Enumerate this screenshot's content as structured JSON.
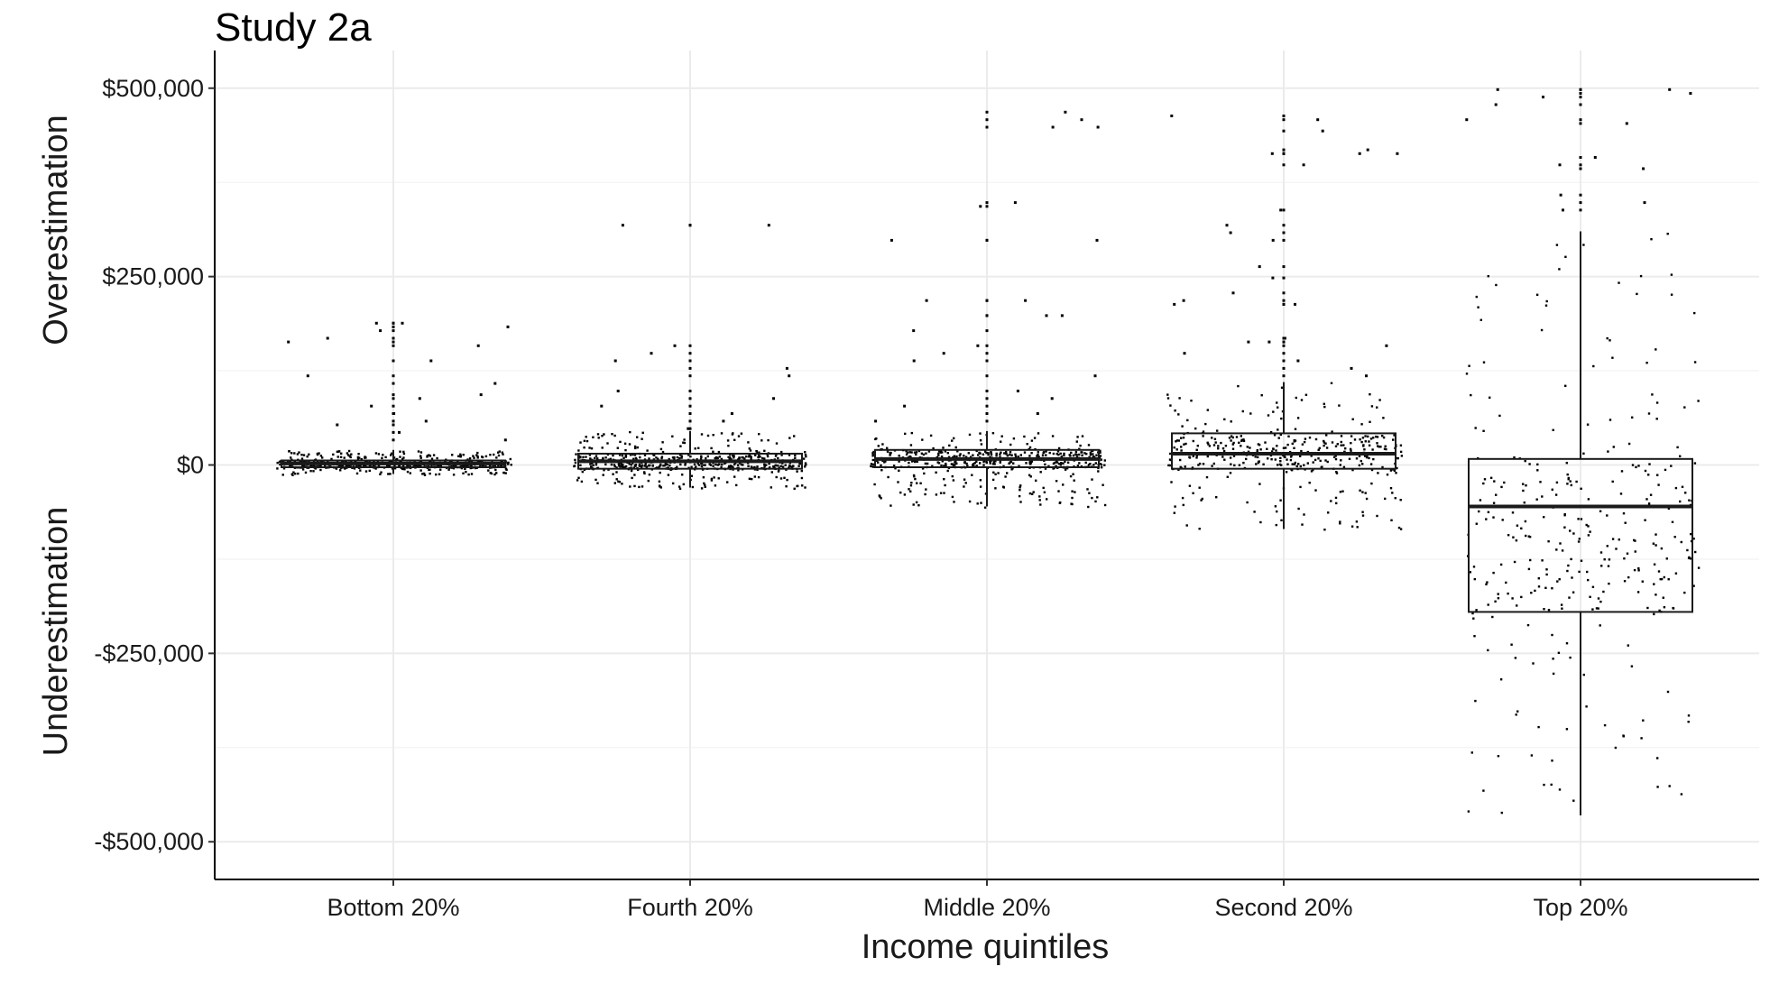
{
  "chart_data": {
    "type": "boxplot",
    "title": "Study 2a",
    "xlabel": "Income quintiles",
    "ylabel_upper": "Overestimation",
    "ylabel_lower": "Underestimation",
    "ylim": [
      -550000,
      550000
    ],
    "grid": true,
    "y_ticks": [
      {
        "value": 500000,
        "label": "$500,000"
      },
      {
        "value": 250000,
        "label": "$250,000"
      },
      {
        "value": 0,
        "label": "$0"
      },
      {
        "value": -250000,
        "label": "-$250,000"
      },
      {
        "value": -500000,
        "label": "-$500,000"
      }
    ],
    "categories": [
      "Bottom 20%",
      "Fourth 20%",
      "Middle 20%",
      "Second 20%",
      "Top 20%"
    ],
    "boxes": [
      {
        "category": "Bottom 20%",
        "q1": -3000,
        "median": 2000,
        "q3": 6000,
        "whisker_low": -12000,
        "whisker_high": 20000,
        "outliers": [
          190000,
          180000,
          170000,
          160000,
          120000,
          95000,
          80000,
          60000,
          190000,
          185000,
          165000,
          140000,
          110000,
          90000,
          70000,
          55000,
          45000,
          35000
        ]
      },
      {
        "category": "Fourth 20%",
        "q1": -5000,
        "median": 5000,
        "q3": 15000,
        "whisker_low": -30000,
        "whisker_high": 45000,
        "outliers": [
          320000,
          320000,
          160000,
          150000,
          140000,
          130000,
          120000,
          100000,
          90000,
          80000,
          70000,
          60000,
          50000
        ]
      },
      {
        "category": "Middle 20%",
        "q1": -3000,
        "median": 8000,
        "q3": 20000,
        "whisker_low": -55000,
        "whisker_high": 45000,
        "outliers": [
          470000,
          460000,
          450000,
          450000,
          350000,
          345000,
          300000,
          300000,
          220000,
          220000,
          200000,
          200000,
          180000,
          160000,
          150000,
          140000,
          120000,
          100000,
          90000,
          80000,
          70000,
          60000
        ]
      },
      {
        "category": "Second 20%",
        "q1": -5000,
        "median": 15000,
        "q3": 42000,
        "whisker_low": -85000,
        "whisker_high": 110000,
        "outliers": [
          465000,
          460000,
          445000,
          420000,
          415000,
          415000,
          415000,
          400000,
          340000,
          320000,
          310000,
          300000,
          265000,
          250000,
          230000,
          220000,
          215000,
          215000,
          170000,
          165000,
          165000,
          160000,
          150000,
          140000,
          130000,
          120000
        ]
      },
      {
        "category": "Top 20%",
        "q1": -195000,
        "median": -55000,
        "q3": 8000,
        "whisker_low": -465000,
        "whisker_high": 310000,
        "outliers": [
          500000,
          500000,
          495000,
          490000,
          480000,
          460000,
          455000,
          410000,
          400000,
          395000,
          360000,
          350000,
          340000
        ]
      }
    ]
  }
}
